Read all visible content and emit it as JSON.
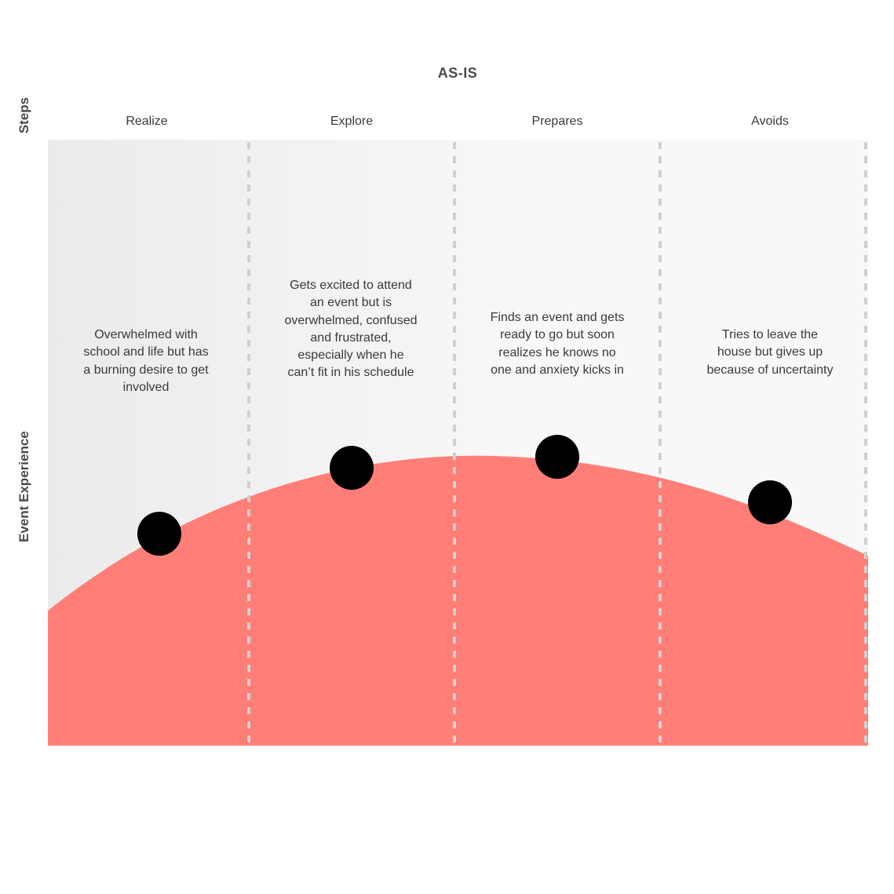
{
  "title": "AS-IS",
  "axis_labels": {
    "steps": "Steps",
    "experience": "Event Experience"
  },
  "steps": [
    {
      "name": "Realize",
      "note": "Overwhelmed with school and life but has a burning desire to get involved"
    },
    {
      "name": "Explore",
      "note": "Gets excited to attend an event but is overwhelmed, confused and frustrated, especially when he can’t fit in his schedule"
    },
    {
      "name": "Prepares",
      "note": "Finds an event and gets ready to go but soon realizes he knows no one and anxiety kicks in"
    },
    {
      "name": "Avoids",
      "note": "Tries to leave the house but gives up because of uncertainty"
    }
  ],
  "colors": {
    "curve_fill": "#FF7F78",
    "marker": "#000000",
    "divider": "#D0D0D0",
    "panel_light": "#F8F8F8",
    "panel_dark": "#EBEBEB"
  }
}
